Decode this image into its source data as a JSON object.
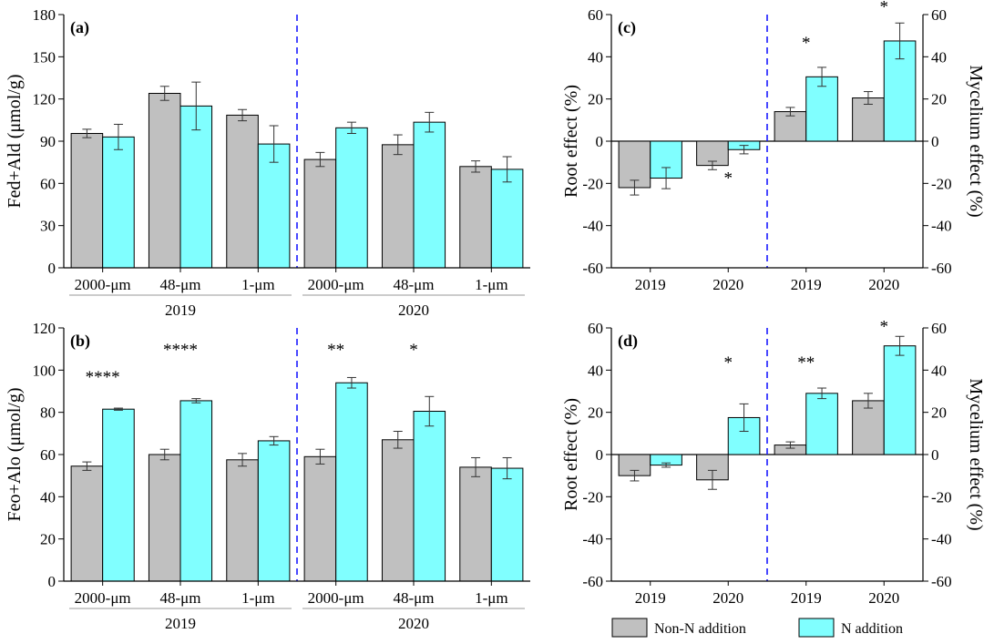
{
  "colors": {
    "non_n": "#c0c0c0",
    "n": "#80ffff",
    "divider": "#1a1aff"
  },
  "legend": {
    "non_n_label": "Non-N addition",
    "n_label": "N addition"
  },
  "chart_data": [
    {
      "id": "a",
      "type": "bar",
      "panel_label": "(a)",
      "ylabel": "Fed+Ald (μmol/g)",
      "ylim": [
        0,
        180
      ],
      "yticks": [
        0,
        30,
        60,
        90,
        120,
        150,
        180
      ],
      "categories": [
        "2000-μm",
        "48-μm",
        "1-μm",
        "2000-μm",
        "48-μm",
        "1-μm"
      ],
      "year_groups": [
        {
          "label": "2019",
          "span": [
            0,
            2
          ]
        },
        {
          "label": "2020",
          "span": [
            3,
            5
          ]
        }
      ],
      "divider_after": 2,
      "series": [
        {
          "name": "Non-N addition",
          "values": [
            95.5,
            124,
            108.5,
            77,
            87.5,
            72
          ],
          "errors": [
            3,
            5,
            4,
            5,
            7,
            4
          ]
        },
        {
          "name": "N addition",
          "values": [
            93,
            115,
            88,
            99.5,
            103.5,
            70
          ],
          "errors": [
            9,
            17,
            13,
            4,
            7,
            9
          ]
        }
      ],
      "annotations": []
    },
    {
      "id": "b",
      "type": "bar",
      "panel_label": "(b)",
      "ylabel": "Feo+Alo (μmol/g)",
      "ylim": [
        0,
        120
      ],
      "yticks": [
        0,
        20,
        40,
        60,
        80,
        100,
        120
      ],
      "categories": [
        "2000-μm",
        "48-μm",
        "1-μm",
        "2000-μm",
        "48-μm",
        "1-μm"
      ],
      "year_groups": [
        {
          "label": "2019",
          "span": [
            0,
            2
          ]
        },
        {
          "label": "2020",
          "span": [
            3,
            5
          ]
        }
      ],
      "divider_after": 2,
      "series": [
        {
          "name": "Non-N addition",
          "values": [
            54.5,
            60,
            57.5,
            59,
            67,
            54
          ],
          "errors": [
            2,
            2.5,
            3,
            3.5,
            4,
            4.5
          ]
        },
        {
          "name": "N addition",
          "values": [
            81.5,
            85.5,
            66.5,
            94,
            80.5,
            53.5
          ],
          "errors": [
            0.5,
            1,
            2,
            2.5,
            7,
            5
          ]
        }
      ],
      "annotations": [
        {
          "text": "****",
          "category": 0,
          "y": 94
        },
        {
          "text": "****",
          "category": 1,
          "y": 107
        },
        {
          "text": "**",
          "category": 3,
          "y": 107
        },
        {
          "text": "*",
          "category": 4,
          "y": 107
        }
      ]
    },
    {
      "id": "c",
      "type": "bar",
      "panel_label": "(c)",
      "ylabel": "Root effect (%)",
      "ylabel_right": "Mycelium effect (%)",
      "ylim": [
        -60,
        60
      ],
      "yticks": [
        -60,
        -40,
        -20,
        0,
        20,
        40,
        60
      ],
      "categories": [
        "2019",
        "2020",
        "2019",
        "2020"
      ],
      "divider_after": 1,
      "series": [
        {
          "name": "Non-N addition",
          "values": [
            -22,
            -11.5,
            14,
            20.5
          ],
          "errors": [
            3.5,
            2,
            2,
            3
          ]
        },
        {
          "name": "N addition",
          "values": [
            -17.5,
            -4,
            30.5,
            47.5
          ],
          "errors": [
            5,
            2,
            4.5,
            8.5
          ]
        }
      ],
      "annotations": [
        {
          "text": "*",
          "category": 1,
          "y": -20
        },
        {
          "text": "*",
          "category": 2,
          "y": 44
        },
        {
          "text": "*",
          "category": 3,
          "y": 61
        }
      ]
    },
    {
      "id": "d",
      "type": "bar",
      "panel_label": "(d)",
      "ylabel": "Root effect (%)",
      "ylabel_right": "Mycelium effect (%)",
      "ylim": [
        -60,
        60
      ],
      "yticks": [
        -60,
        -40,
        -20,
        0,
        20,
        40,
        60
      ],
      "categories": [
        "2019",
        "2020",
        "2019",
        "2020"
      ],
      "divider_after": 1,
      "series": [
        {
          "name": "Non-N addition",
          "values": [
            -10,
            -12,
            4.5,
            25.5
          ],
          "errors": [
            2.5,
            4.5,
            1.5,
            3.5
          ]
        },
        {
          "name": "N addition",
          "values": [
            -5,
            17.5,
            29,
            51.5
          ],
          "errors": [
            1,
            6.5,
            2.5,
            4.5
          ]
        }
      ],
      "annotations": [
        {
          "text": "*",
          "category": 1,
          "y": 41
        },
        {
          "text": "**",
          "category": 2,
          "y": 41
        },
        {
          "text": "*",
          "category": 3,
          "y": 58
        }
      ]
    }
  ]
}
